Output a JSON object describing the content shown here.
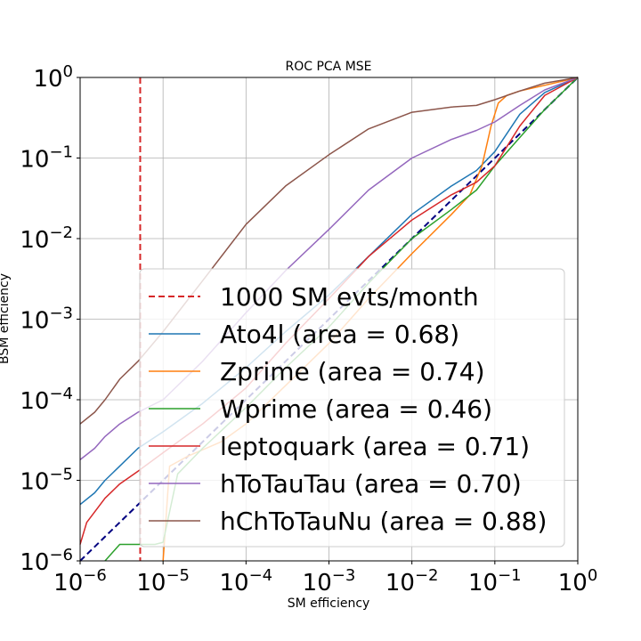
{
  "chart_data": {
    "type": "line",
    "title": "ROC PCA MSE",
    "xlabel": "SM efficiency",
    "ylabel": "BSM efficiency",
    "xscale": "log",
    "yscale": "log",
    "xlim": [
      1e-06,
      1
    ],
    "ylim": [
      1e-06,
      1
    ],
    "grid": true,
    "legend_position": "lower-right",
    "x_ticks": [
      {
        "value": 1e-06,
        "base": "10",
        "exp": "−6"
      },
      {
        "value": 1e-05,
        "base": "10",
        "exp": "−5"
      },
      {
        "value": 0.0001,
        "base": "10",
        "exp": "−4"
      },
      {
        "value": 0.001,
        "base": "10",
        "exp": "−3"
      },
      {
        "value": 0.01,
        "base": "10",
        "exp": "−2"
      },
      {
        "value": 0.1,
        "base": "10",
        "exp": "−1"
      },
      {
        "value": 1,
        "base": "10",
        "exp": "0"
      }
    ],
    "y_ticks": [
      {
        "value": 1e-06,
        "base": "10",
        "exp": "−6"
      },
      {
        "value": 1e-05,
        "base": "10",
        "exp": "−5"
      },
      {
        "value": 0.0001,
        "base": "10",
        "exp": "−4"
      },
      {
        "value": 0.001,
        "base": "10",
        "exp": "−3"
      },
      {
        "value": 0.01,
        "base": "10",
        "exp": "−2"
      },
      {
        "value": 0.1,
        "base": "10",
        "exp": "−1"
      },
      {
        "value": 1,
        "base": "10",
        "exp": "0"
      }
    ],
    "reference_lines": [
      {
        "name": "1000 SM evts/month",
        "orientation": "vertical",
        "x": 5.3e-06,
        "color": "#d62728",
        "style": "dashed"
      },
      {
        "name": "",
        "orientation": "diagonal",
        "x": [
          1e-06,
          1
        ],
        "y": [
          1e-06,
          1
        ],
        "color": "#000080",
        "style": "dashed"
      }
    ],
    "series": [
      {
        "name": "Ato4l (area = 0.68)",
        "color": "#1f77b4",
        "x": [
          1e-06,
          1.5e-06,
          2e-06,
          3e-06,
          5e-06,
          1e-05,
          3e-05,
          0.0001,
          0.0003,
          0.001,
          0.003,
          0.01,
          0.03,
          0.06,
          0.1,
          0.2,
          0.4,
          1
        ],
        "y": [
          5e-06,
          7e-06,
          1e-05,
          1.5e-05,
          2.5e-05,
          4e-05,
          9e-05,
          0.00025,
          0.0007,
          0.002,
          0.006,
          0.02,
          0.045,
          0.07,
          0.12,
          0.35,
          0.65,
          1
        ]
      },
      {
        "name": "Zprime (area = 0.74)",
        "color": "#ff7f0e",
        "x": [
          1e-05,
          1.2e-05,
          2e-05,
          5e-05,
          0.0001,
          0.0003,
          0.001,
          0.003,
          0.01,
          0.03,
          0.05,
          0.07,
          0.09,
          0.11,
          0.14,
          0.2,
          0.4,
          1
        ],
        "y": [
          1e-06,
          1.5e-05,
          2e-05,
          3e-05,
          5e-05,
          0.00015,
          0.0005,
          0.0018,
          0.0065,
          0.02,
          0.035,
          0.08,
          0.25,
          0.48,
          0.6,
          0.68,
          0.8,
          1
        ]
      },
      {
        "name": "Wprime (area = 0.46)",
        "color": "#2ca02c",
        "x": [
          2e-06,
          3e-06,
          5e-06,
          8e-06,
          1e-05,
          1.5e-05,
          3e-05,
          0.0001,
          0.0003,
          0.001,
          0.003,
          0.01,
          0.03,
          0.06,
          0.1,
          0.2,
          0.4,
          1
        ],
        "y": [
          1e-06,
          1.6e-06,
          1.6e-06,
          1.6e-06,
          1.7e-06,
          1.2e-05,
          2.5e-05,
          8e-05,
          0.00025,
          0.0008,
          0.0028,
          0.01,
          0.023,
          0.04,
          0.08,
          0.18,
          0.4,
          1
        ]
      },
      {
        "name": "leptoquark (area = 0.71)",
        "color": "#d62728",
        "x": [
          1e-06,
          1.2e-06,
          2e-06,
          3e-06,
          5e-06,
          1e-05,
          3e-05,
          0.0001,
          0.0003,
          0.001,
          0.003,
          0.01,
          0.03,
          0.06,
          0.1,
          0.2,
          0.4,
          1
        ],
        "y": [
          1.6e-06,
          3e-06,
          6e-06,
          9e-06,
          1.3e-05,
          2.2e-05,
          5e-05,
          0.00014,
          0.0005,
          0.0018,
          0.006,
          0.017,
          0.035,
          0.05,
          0.08,
          0.25,
          0.6,
          1
        ]
      },
      {
        "name": "hToTauTau (area = 0.70)",
        "color": "#9467bd",
        "x": [
          1e-06,
          1.5e-06,
          2e-06,
          3e-06,
          5e-06,
          1e-05,
          3e-05,
          0.0001,
          0.0003,
          0.001,
          0.003,
          0.01,
          0.03,
          0.06,
          0.1,
          0.2,
          0.4,
          1
        ],
        "y": [
          1.8e-05,
          2.5e-05,
          3.5e-05,
          5e-05,
          7e-05,
          0.0001,
          0.0003,
          0.0012,
          0.004,
          0.013,
          0.04,
          0.1,
          0.17,
          0.22,
          0.28,
          0.45,
          0.7,
          1
        ]
      },
      {
        "name": "hChToTauNu (area = 0.88)",
        "color": "#8c564b",
        "x": [
          1e-06,
          1.5e-06,
          2e-06,
          3e-06,
          5e-06,
          1e-05,
          3e-05,
          0.0001,
          0.0003,
          0.001,
          0.003,
          0.01,
          0.03,
          0.06,
          0.1,
          0.2,
          0.4,
          1
        ],
        "y": [
          5e-05,
          7e-05,
          0.0001,
          0.00018,
          0.0003,
          0.0007,
          0.003,
          0.015,
          0.045,
          0.11,
          0.23,
          0.37,
          0.43,
          0.45,
          0.53,
          0.68,
          0.85,
          1
        ]
      }
    ]
  }
}
